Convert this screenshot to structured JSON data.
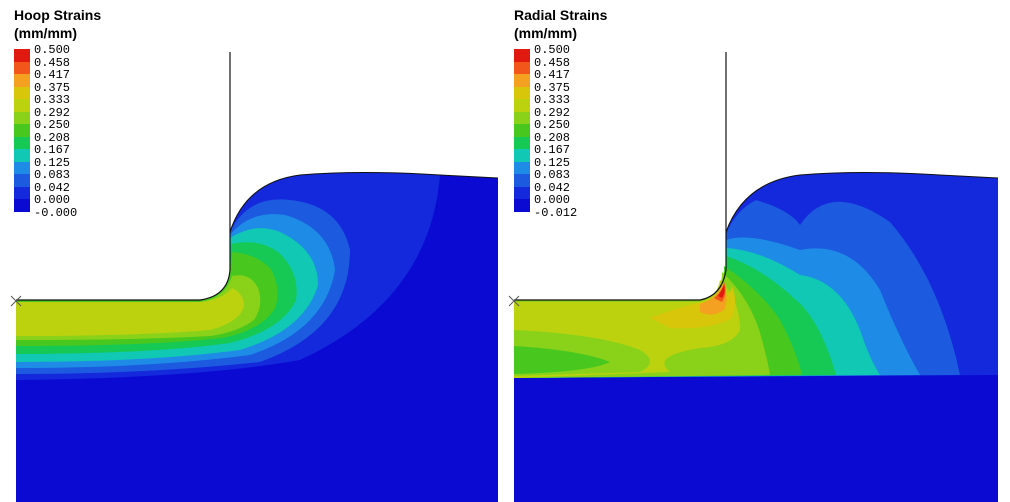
{
  "panels": [
    {
      "title": "Hoop Strains\n(mm/mm)",
      "legend_values": [
        "0.500",
        "0.458",
        "0.417",
        "0.375",
        "0.333",
        "0.292",
        "0.250",
        "0.208",
        "0.167",
        "0.125",
        "0.083",
        "0.042",
        "0.000",
        "-0.000"
      ]
    },
    {
      "title": "Radial Strains\n(mm/mm)",
      "legend_values": [
        "0.500",
        "0.458",
        "0.417",
        "0.375",
        "0.333",
        "0.292",
        "0.250",
        "0.208",
        "0.167",
        "0.125",
        "0.083",
        "0.042",
        "0.000",
        "-0.012"
      ]
    }
  ],
  "legend_colors": [
    "#e01a10",
    "#f2561a",
    "#f4a020",
    "#d7c60a",
    "#bcd20e",
    "#8ad21a",
    "#48c81e",
    "#16c854",
    "#10c8b4",
    "#1e8ce6",
    "#1c5ae0",
    "#1428dc",
    "#0a0ad2"
  ]
}
